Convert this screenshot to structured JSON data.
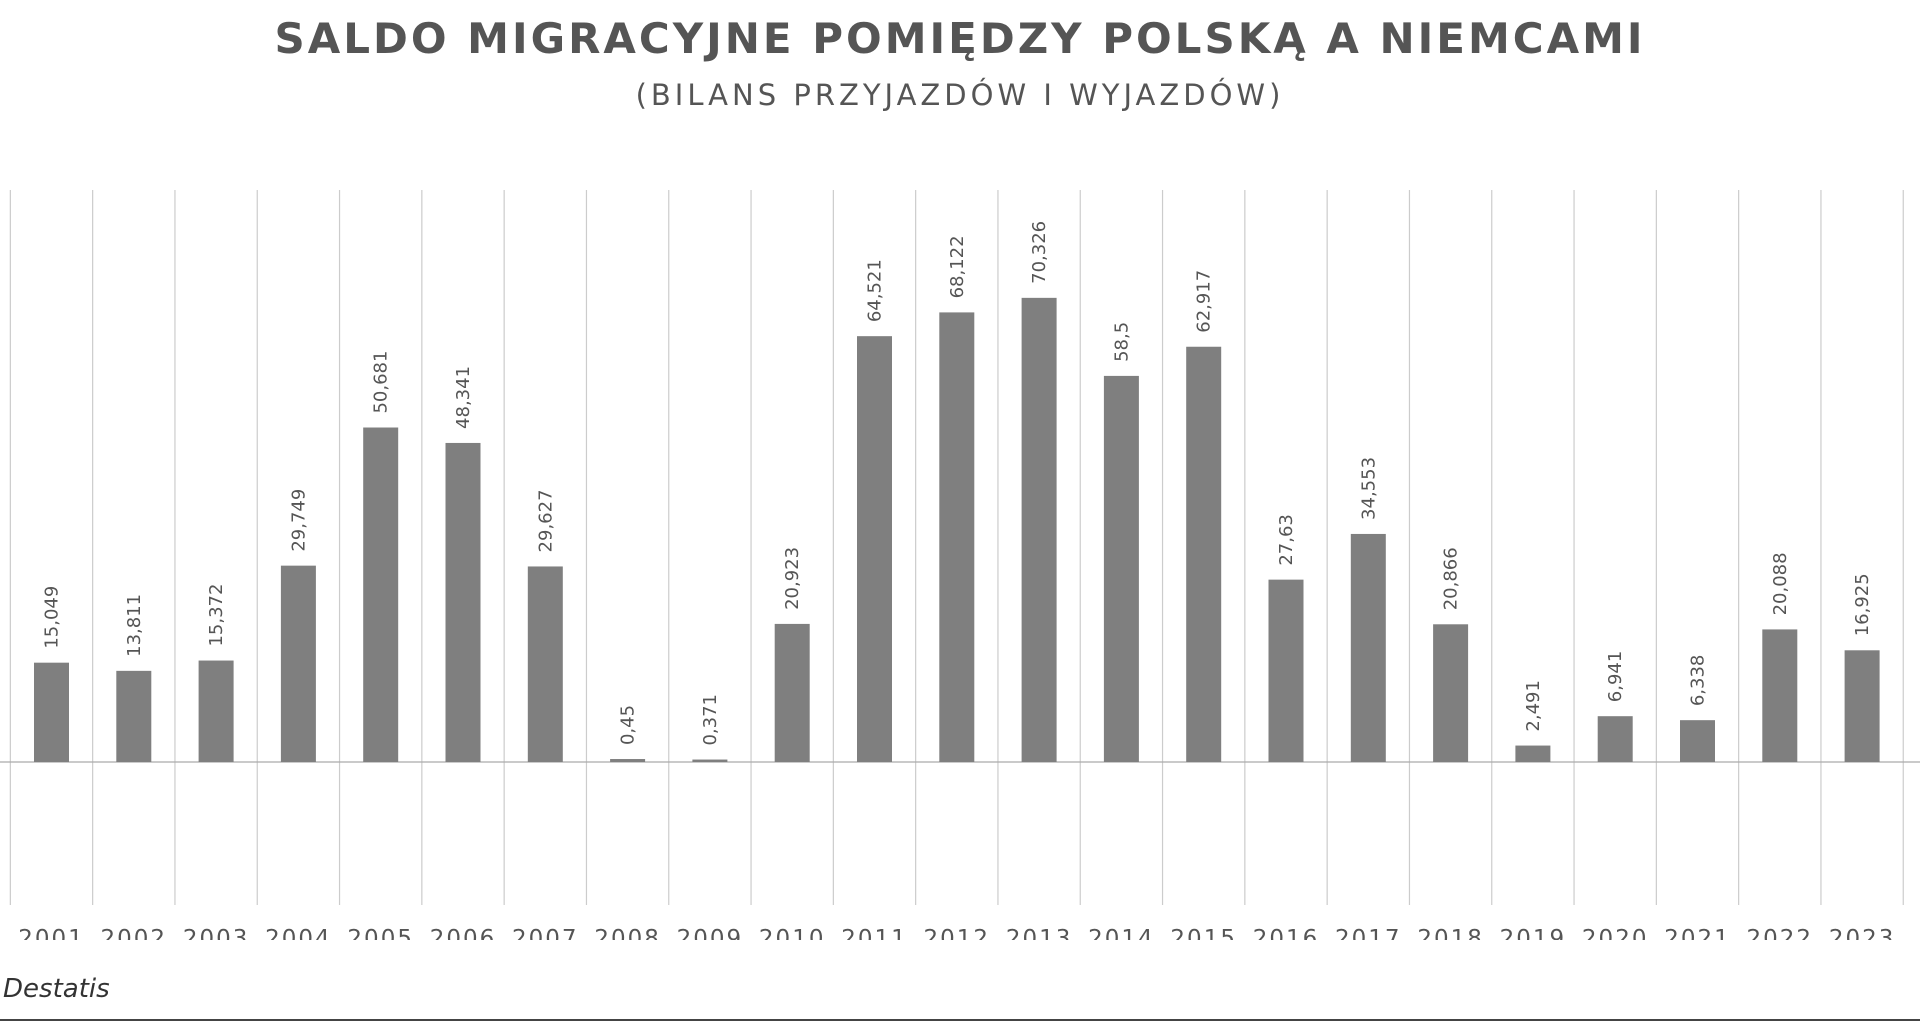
{
  "chart_data": {
    "type": "bar",
    "title": "SALDO MIGRACYJNE POMIĘDZY POLSKĄ A NIEMCAMI",
    "subtitle": "(BILANS PRZYJAZDÓW I WYJAZDÓW)",
    "xlabel": "",
    "ylabel": "",
    "source": ": Destatis",
    "categories": [
      "2001",
      "2002",
      "2003",
      "2004",
      "2005",
      "2006",
      "2007",
      "2008",
      "2009",
      "2010",
      "2011",
      "2012",
      "2013",
      "2014",
      "2015",
      "2016",
      "2017",
      "2018",
      "2019",
      "2020",
      "2021",
      "2022",
      "2023"
    ],
    "values": [
      15.049,
      13.811,
      15.372,
      29.749,
      50.681,
      48.341,
      29.627,
      0.45,
      0.371,
      20.923,
      64.521,
      68.122,
      70.326,
      58.5,
      62.917,
      27.63,
      34.553,
      20.866,
      2.491,
      6.941,
      6.338,
      20.088,
      16.925
    ],
    "data_labels": [
      "15,049",
      "13,811",
      "15,372",
      "29,749",
      "50,681",
      "48,341",
      "29,627",
      "0,45",
      "0,371",
      "20,923",
      "64,521",
      "68,122",
      "70,326",
      "58,5",
      "62,917",
      "27,63",
      "34,553",
      "20,866",
      "2,491",
      "6,941",
      "6,338",
      "20,088",
      "16,925"
    ],
    "ylim": [
      -20,
      80
    ],
    "grid": "vertical",
    "legend": "none",
    "colors": {
      "bar": "#7f7f7f",
      "grid": "#cccccc",
      "axis": "#aaaaaa",
      "label": "#555555"
    }
  }
}
